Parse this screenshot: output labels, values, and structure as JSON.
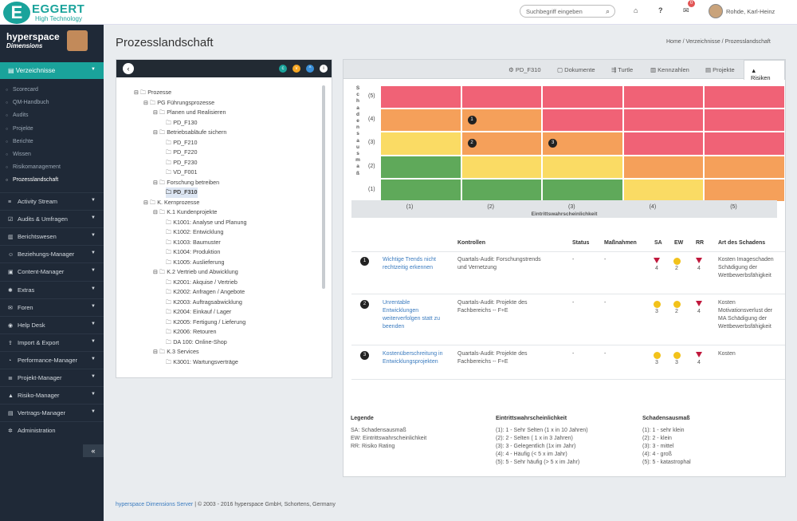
{
  "header": {
    "logo_mark": "E",
    "logo_name": "EGGERT",
    "logo_sub": "High Technology",
    "search_placeholder": "Suchbegriff eingeben",
    "notif_count": "0",
    "user": "Rohde, Karl-Heinz"
  },
  "brand": {
    "line1": "hyperspace",
    "line2": "Dimensions"
  },
  "sidebar": {
    "active": "Verzeichnisse",
    "subitems": [
      "Scorecard",
      "QM-Handbuch",
      "Audits",
      "Projekte",
      "Berichte",
      "Wissen",
      "Risikomanagement",
      "Prozesslandschaft"
    ],
    "items": [
      {
        "label": "Activity Stream",
        "icon": "list-icon"
      },
      {
        "label": "Audits & Umfragen",
        "icon": "check-icon"
      },
      {
        "label": "Berichtswesen",
        "icon": "chart-icon"
      },
      {
        "label": "Beziehungs-Manager",
        "icon": "users-icon"
      },
      {
        "label": "Content-Manager",
        "icon": "box-icon"
      },
      {
        "label": "Extras",
        "icon": "gear-icon"
      },
      {
        "label": "Foren",
        "icon": "comments-icon"
      },
      {
        "label": "Help Desk",
        "icon": "globe-icon"
      },
      {
        "label": "Import & Export",
        "icon": "upload-icon"
      },
      {
        "label": "Performance-Manager",
        "icon": "gauge-icon"
      },
      {
        "label": "Projekt-Manager",
        "icon": "bars-icon"
      },
      {
        "label": "Risiko-Manager",
        "icon": "warning-icon"
      },
      {
        "label": "Vertrags-Manager",
        "icon": "contract-icon"
      },
      {
        "label": "Administration",
        "icon": "cog-icon"
      }
    ]
  },
  "page": {
    "title": "Prozesslandschaft",
    "breadcrumb": [
      "Home",
      "Verzeichnisse",
      "Prozesslandschaft"
    ]
  },
  "tree": [
    {
      "label": "Prozesse",
      "level": 0
    },
    {
      "label": "PG Führungsprozesse",
      "level": 1
    },
    {
      "label": "Planen und Realisieren",
      "level": 2
    },
    {
      "label": "PD_F130",
      "level": 3
    },
    {
      "label": "Betriebsabläufe sichern",
      "level": 2
    },
    {
      "label": "PD_F210",
      "level": 3
    },
    {
      "label": "PD_F220",
      "level": 3
    },
    {
      "label": "PD_F230",
      "level": 3
    },
    {
      "label": "VD_F001",
      "level": 3
    },
    {
      "label": "Forschung betreiben",
      "level": 2
    },
    {
      "label": "PD_F310",
      "level": 3,
      "selected": true
    },
    {
      "label": "K. Kernprozesse",
      "level": 1
    },
    {
      "label": "K.1 Kundenprojekte",
      "level": 2
    },
    {
      "label": "K1001: Analyse und Planung",
      "level": 3
    },
    {
      "label": "K1002: Entwicklung",
      "level": 3
    },
    {
      "label": "K1003: Baumuster",
      "level": 3
    },
    {
      "label": "K1004: Produktion",
      "level": 3
    },
    {
      "label": "K1005: Auslieferung",
      "level": 3
    },
    {
      "label": "K.2 Vertrieb und Abwicklung",
      "level": 2
    },
    {
      "label": "K2001: Akquise / Vertrieb",
      "level": 3
    },
    {
      "label": "K2002: Anfragen / Angebote",
      "level": 3
    },
    {
      "label": "K2003: Auftragsabwicklung",
      "level": 3
    },
    {
      "label": "K2004: Einkauf / Lager",
      "level": 3
    },
    {
      "label": "K2005: Fertigung / Lieferung",
      "level": 3
    },
    {
      "label": "K2006: Retouren",
      "level": 3
    },
    {
      "label": "DA 100: Online-Shop",
      "level": 3
    },
    {
      "label": "K.3 Services",
      "level": 2
    },
    {
      "label": "K3001: Wartungsverträge",
      "level": 3
    }
  ],
  "tabs": [
    {
      "label": "PD_F310"
    },
    {
      "label": "Dokumente"
    },
    {
      "label": "Turtle"
    },
    {
      "label": "Kennzahlen"
    },
    {
      "label": "Projekte"
    },
    {
      "label": "Risiken",
      "active": true
    }
  ],
  "matrix": {
    "y_label": "Schadensausmaß",
    "x_label": "Eintrittswahrscheinlichkeit",
    "rows": [
      "(5)",
      "(4)",
      "(3)",
      "(2)",
      "(1)"
    ],
    "cols": [
      "(1)",
      "(2)",
      "(3)",
      "(4)",
      "(5)"
    ],
    "colors": [
      [
        "#f06276",
        "#f06276",
        "#f06276",
        "#f06276",
        "#f06276"
      ],
      [
        "#f5a05a",
        "#f5a05a",
        "#f06276",
        "#f06276",
        "#f06276"
      ],
      [
        "#fadb64",
        "#f5a05a",
        "#f5a05a",
        "#f06276",
        "#f06276"
      ],
      [
        "#5fa95a",
        "#fadb64",
        "#fadb64",
        "#f5a05a",
        "#f5a05a"
      ],
      [
        "#5fa95a",
        "#5fa95a",
        "#5fa95a",
        "#fadb64",
        "#f5a05a"
      ]
    ],
    "markers": [
      {
        "id": "1",
        "row": 1,
        "col": 1
      },
      {
        "id": "2",
        "row": 2,
        "col": 1
      },
      {
        "id": "3",
        "row": 2,
        "col": 2
      }
    ]
  },
  "risk_table": {
    "headers": [
      "Kontrollen",
      "Status",
      "Maßnahmen",
      "SA",
      "EW",
      "RR",
      "Art des Schadens"
    ],
    "rows": [
      {
        "id": "1",
        "name": "Wichtige Trends nicht rechtzeitig erkennen",
        "kontrollen": "Quartals-Audit: Forschungstrends und Vernetzung",
        "status": "-",
        "massnahmen": "-",
        "sa": "4",
        "ew": "2",
        "rr": "4",
        "art": "Kosten Imageschaden Schädigung der Wettbewerbsfähigkeit"
      },
      {
        "id": "2",
        "name": "Unrentable Entwicklungen weiterverfolgen statt zu beenden",
        "kontrollen": "Quartals-Audit: Projekte des Fachbereichs -- F+E",
        "status": "-",
        "massnahmen": "-",
        "sa": "3",
        "ew": "2",
        "rr": "4",
        "art": "Kosten Motivationsverlust der MA Schädigung der Wettbewerbsfähigkeit"
      },
      {
        "id": "3",
        "name": "Kostenüberschreitung in Entwicklungsprojekten",
        "kontrollen": "Quartals-Audit: Projekte des Fachbereichs -- F+E",
        "status": "-",
        "massnahmen": "-",
        "sa": "3",
        "ew": "3",
        "rr": "4",
        "art": "Kosten"
      }
    ]
  },
  "legend": {
    "title": "Legende",
    "lines": [
      "SA: Schadensausmaß",
      "EW: Eintrittswahrscheinlichkeit",
      "RR: Risiko Rating"
    ],
    "ew_title": "Eintrittswahrscheinlichkeit",
    "ew_lines": [
      "(1): 1 - Sehr Selten (1 x in 10 Jahren)",
      "(2): 2 - Selten ( 1 x in 3 Jahren)",
      "(3): 3 - Gelegentlich (1x im Jahr)",
      "(4): 4 - Häufig (< 5 x im Jahr)",
      "(5): 5 - Sehr häufig (> 5 x im Jahr)"
    ],
    "sa_title": "Schadensausmaß",
    "sa_lines": [
      "(1): 1 - sehr klein",
      "(2): 2 - klein",
      "(3): 3 - mittel",
      "(4): 4 - groß",
      "(5): 5 - katastrophal"
    ]
  },
  "footer": {
    "link": "hyperspace Dimensions Server",
    "text": " | © 2003 - 2016 hyperspace GmbH, Schortens, Germany"
  }
}
